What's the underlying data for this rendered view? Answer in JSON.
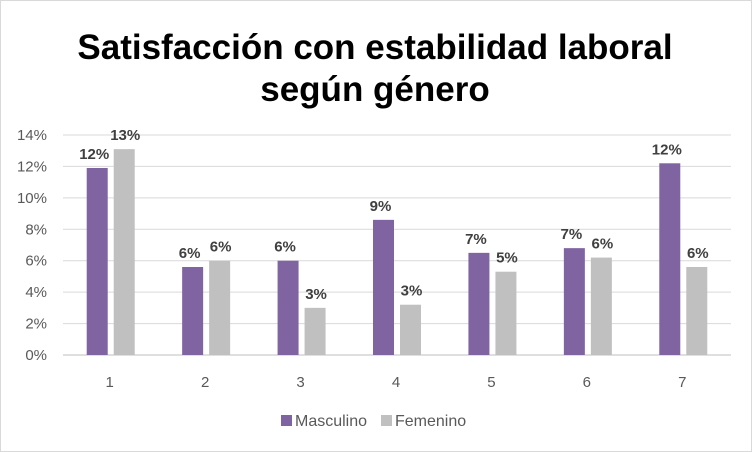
{
  "chart_data": {
    "type": "bar",
    "title_lines": [
      "Satisfacción con estabilidad laboral",
      "según género"
    ],
    "categories": [
      "1",
      "2",
      "3",
      "4",
      "5",
      "6",
      "7"
    ],
    "series": [
      {
        "name": "Masculino",
        "color": "#8064a2",
        "values": [
          11.9,
          5.6,
          6.0,
          8.6,
          6.5,
          6.8,
          12.2
        ],
        "labels": [
          "12%",
          "6%",
          "6%",
          "9%",
          "7%",
          "7%",
          "12%"
        ]
      },
      {
        "name": "Femenino",
        "color": "#c0c0c0",
        "values": [
          13.1,
          6.0,
          3.0,
          3.2,
          5.3,
          6.2,
          5.6
        ],
        "labels": [
          "13%",
          "6%",
          "3%",
          "3%",
          "5%",
          "6%",
          "6%"
        ]
      }
    ],
    "yticks": [
      "0%",
      "2%",
      "4%",
      "6%",
      "8%",
      "10%",
      "12%",
      "14%"
    ],
    "ylim": [
      0,
      14
    ],
    "xlabel": "",
    "ylabel": "",
    "grid": true,
    "legend_position": "bottom"
  }
}
